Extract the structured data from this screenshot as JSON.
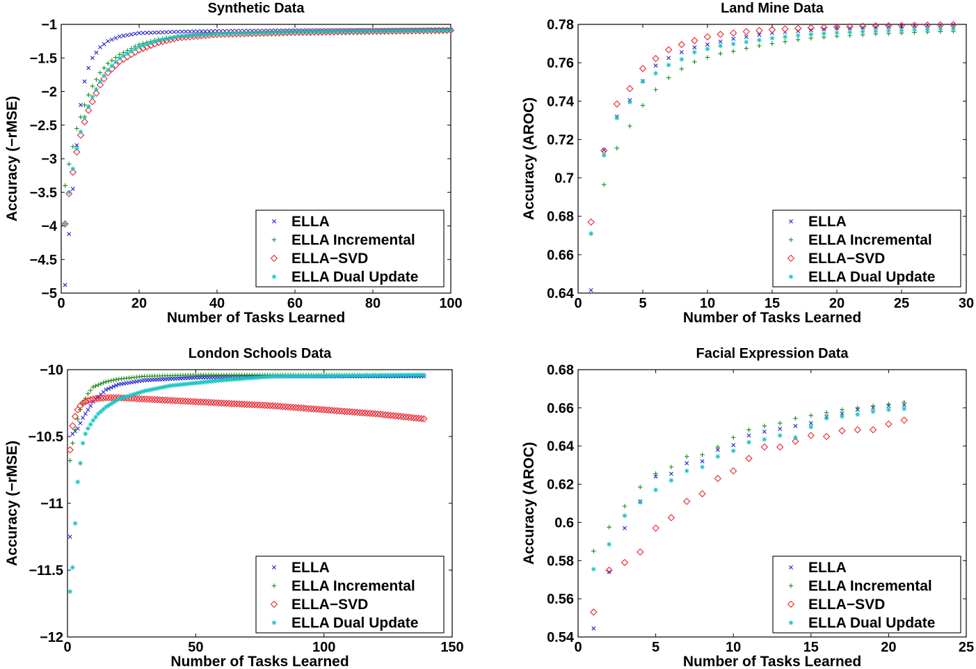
{
  "chart_data": [
    {
      "type": "scatter",
      "title": "Synthetic Data",
      "xlabel": "Number of Tasks Learned",
      "ylabel": "Accuracy (−rMSE)",
      "xlim": [
        0,
        100
      ],
      "ylim": [
        -5,
        -1
      ],
      "xticks": [
        0,
        20,
        40,
        60,
        80,
        100
      ],
      "yticks": [
        -5,
        -4.5,
        -4,
        -3.5,
        -3,
        -2.5,
        -2,
        -1.5,
        -1
      ],
      "xtick_labels": [
        "0",
        "20",
        "40",
        "60",
        "80",
        "100"
      ],
      "ytick_labels": [
        "−5",
        "−4.5",
        "−4",
        "−3.5",
        "−3",
        "−2.5",
        "−2",
        "−1.5",
        "−1"
      ],
      "legend": [
        "ELLA",
        "ELLA Incremental",
        "ELLA−SVD",
        "ELLA Dual Update"
      ],
      "legend_position": "bottom-right",
      "series": [
        {
          "name": "ELLA",
          "marker": "x",
          "color": "#1f1fd0",
          "curve": {
            "x": [
              1,
              2,
              3,
              4,
              5,
              6,
              7,
              8,
              10,
              12,
              15,
              20,
              30,
              40,
              60,
              100
            ],
            "y": [
              -4.88,
              -4.12,
              -3.45,
              -2.8,
              -2.2,
              -1.85,
              -1.65,
              -1.5,
              -1.34,
              -1.25,
              -1.18,
              -1.13,
              -1.11,
              -1.1,
              -1.09,
              -1.08
            ]
          },
          "x_start": 1,
          "x_end": 100,
          "step": 1
        },
        {
          "name": "ELLA Incremental",
          "marker": "plus",
          "color": "#1a8a1a",
          "curve": {
            "x": [
              1,
              2,
              3,
              4,
              5,
              6,
              7,
              8,
              10,
              12,
              15,
              20,
              25,
              30,
              40,
              60,
              100
            ],
            "y": [
              -3.4,
              -3.08,
              -2.82,
              -2.55,
              -2.38,
              -2.2,
              -2.05,
              -1.92,
              -1.72,
              -1.58,
              -1.45,
              -1.3,
              -1.22,
              -1.18,
              -1.14,
              -1.12,
              -1.1
            ]
          },
          "x_start": 1,
          "x_end": 100,
          "step": 1
        },
        {
          "name": "ELLA−SVD",
          "marker": "diamond",
          "color": "#e8222a",
          "curve": {
            "x": [
              1,
              2,
              3,
              4,
              5,
              6,
              7,
              8,
              10,
              12,
              15,
              20,
              25,
              30,
              40,
              60,
              100
            ],
            "y": [
              -3.97,
              -3.52,
              -3.2,
              -2.9,
              -2.65,
              -2.45,
              -2.28,
              -2.15,
              -1.9,
              -1.72,
              -1.55,
              -1.38,
              -1.27,
              -1.2,
              -1.15,
              -1.12,
              -1.09
            ]
          },
          "x_start": 1,
          "x_end": 100,
          "step": 1
        },
        {
          "name": "ELLA Dual Update",
          "marker": "star",
          "color": "#1bc4c4",
          "curve": {
            "x": [
              1,
              2,
              3,
              4,
              5,
              6,
              7,
              8,
              10,
              12,
              15,
              20,
              25,
              30,
              40,
              60,
              100
            ],
            "y": [
              -3.97,
              -3.5,
              -3.15,
              -2.85,
              -2.6,
              -2.38,
              -2.22,
              -2.08,
              -1.85,
              -1.68,
              -1.5,
              -1.33,
              -1.24,
              -1.18,
              -1.14,
              -1.11,
              -1.09
            ]
          },
          "x_start": 1,
          "x_end": 100,
          "step": 1
        }
      ]
    },
    {
      "type": "scatter",
      "title": "Land Mine Data",
      "xlabel": "Number of Tasks Learned",
      "ylabel": "Accuracy (AROC)",
      "xlim": [
        0,
        30
      ],
      "ylim": [
        0.64,
        0.78
      ],
      "xticks": [
        0,
        5,
        10,
        15,
        20,
        25,
        30
      ],
      "yticks": [
        0.64,
        0.66,
        0.68,
        0.7,
        0.72,
        0.74,
        0.76,
        0.78
      ],
      "xtick_labels": [
        "0",
        "5",
        "10",
        "15",
        "20",
        "25",
        "30"
      ],
      "ytick_labels": [
        "0.64",
        "0.66",
        "0.68",
        "0.7",
        "0.72",
        "0.74",
        "0.76",
        "0.78"
      ],
      "legend": [
        "ELLA",
        "ELLA Incremental",
        "ELLA−SVD",
        "ELLA Dual Update"
      ],
      "legend_position": "bottom-right",
      "series": [
        {
          "name": "ELLA",
          "marker": "x",
          "color": "#1f1fd0",
          "x": [
            1,
            2,
            3,
            4,
            5,
            6,
            7,
            8,
            9,
            10,
            11,
            12,
            13,
            14,
            15,
            16,
            17,
            18,
            19,
            20,
            21,
            22,
            23,
            24,
            25,
            26,
            27,
            28,
            29
          ],
          "y": [
            0.6415,
            0.7145,
            0.732,
            0.7405,
            0.7505,
            0.7585,
            0.7625,
            0.7655,
            0.768,
            0.7695,
            0.771,
            0.7725,
            0.7735,
            0.7745,
            0.7755,
            0.776,
            0.7765,
            0.777,
            0.7775,
            0.778,
            0.778,
            0.7783,
            0.7786,
            0.7788,
            0.779,
            0.7792,
            0.7794,
            0.7796,
            0.7798
          ]
        },
        {
          "name": "ELLA Incremental",
          "marker": "plus",
          "color": "#1a8a1a",
          "x": [
            1,
            2,
            3,
            4,
            5,
            6,
            7,
            8,
            9,
            10,
            11,
            12,
            13,
            14,
            15,
            16,
            17,
            18,
            19,
            20,
            21,
            22,
            23,
            24,
            25,
            26,
            27,
            28,
            29
          ],
          "y": [
            0.671,
            0.6965,
            0.7155,
            0.727,
            0.7378,
            0.746,
            0.7522,
            0.7568,
            0.7605,
            0.7628,
            0.7648,
            0.766,
            0.7675,
            0.7688,
            0.77,
            0.771,
            0.772,
            0.7728,
            0.7733,
            0.7738,
            0.7742,
            0.7746,
            0.775,
            0.7752,
            0.7755,
            0.7758,
            0.776,
            0.7762,
            0.7764
          ]
        },
        {
          "name": "ELLA−SVD",
          "marker": "diamond",
          "color": "#e8222a",
          "x": [
            1,
            2,
            3,
            4,
            5,
            6,
            7,
            8,
            9,
            10,
            11,
            12,
            13,
            14,
            15,
            16,
            17,
            18,
            19,
            20,
            21,
            22,
            23,
            24,
            25,
            26,
            27,
            28,
            29
          ],
          "y": [
            0.677,
            0.7142,
            0.7385,
            0.7465,
            0.757,
            0.7622,
            0.7668,
            0.7695,
            0.7715,
            0.7735,
            0.7748,
            0.7755,
            0.7762,
            0.7768,
            0.7772,
            0.7776,
            0.7779,
            0.7782,
            0.7784,
            0.7786,
            0.7788,
            0.779,
            0.7792,
            0.7793,
            0.7794,
            0.7795,
            0.7796,
            0.7797,
            0.7798
          ]
        },
        {
          "name": "ELLA Dual Update",
          "marker": "star",
          "color": "#1bc4c4",
          "x": [
            1,
            2,
            3,
            4,
            5,
            6,
            7,
            8,
            9,
            10,
            11,
            12,
            13,
            14,
            15,
            16,
            17,
            18,
            19,
            20,
            21,
            22,
            23,
            24,
            25,
            26,
            27,
            28,
            29
          ],
          "y": [
            0.671,
            0.7118,
            0.7312,
            0.7395,
            0.7502,
            0.7545,
            0.7588,
            0.7618,
            0.7655,
            0.7672,
            0.7688,
            0.7698,
            0.7708,
            0.7718,
            0.7728,
            0.7735,
            0.7742,
            0.7748,
            0.7752,
            0.7756,
            0.7759,
            0.7762,
            0.7765,
            0.7767,
            0.7769,
            0.7771,
            0.7773,
            0.7775,
            0.7777
          ]
        }
      ]
    },
    {
      "type": "scatter",
      "title": "London Schools Data",
      "xlabel": "Number of Tasks Learned",
      "ylabel": "Accuracy (−rMSE)",
      "xlim": [
        0,
        150
      ],
      "ylim": [
        -12,
        -10
      ],
      "xticks": [
        0,
        50,
        100,
        150
      ],
      "yticks": [
        -12,
        -11.5,
        -11,
        -10.5,
        -10
      ],
      "xtick_labels": [
        "0",
        "50",
        "100",
        "150"
      ],
      "ytick_labels": [
        "−12",
        "−11.5",
        "−11",
        "−10.5",
        "−10"
      ],
      "legend": [
        "ELLA",
        "ELLA Incremental",
        "ELLA−SVD",
        "ELLA Dual Update"
      ],
      "legend_position": "bottom-right",
      "series": [
        {
          "name": "ELLA",
          "marker": "x",
          "color": "#1f1fd0",
          "curve": {
            "x": [
              1,
              2,
              3,
              4,
              5,
              6,
              8,
              10,
              15,
              20,
              30,
              50,
              80,
              140
            ],
            "y": [
              -11.25,
              -10.48,
              -10.46,
              -10.44,
              -10.4,
              -10.36,
              -10.3,
              -10.24,
              -10.15,
              -10.11,
              -10.08,
              -10.06,
              -10.05,
              -10.05
            ]
          },
          "x_start": 1,
          "x_end": 139,
          "step": 1
        },
        {
          "name": "ELLA Incremental",
          "marker": "plus",
          "color": "#1a8a1a",
          "curve": {
            "x": [
              1,
              2,
              3,
              4,
              5,
              6,
              8,
              10,
              15,
              20,
              30,
              50,
              80,
              140
            ],
            "y": [
              -10.68,
              -10.55,
              -10.45,
              -10.37,
              -10.3,
              -10.25,
              -10.18,
              -10.13,
              -10.09,
              -10.07,
              -10.05,
              -10.04,
              -10.04,
              -10.04
            ]
          },
          "x_start": 1,
          "x_end": 139,
          "step": 1
        },
        {
          "name": "ELLA−SVD",
          "marker": "diamond",
          "color": "#e8222a",
          "curve": {
            "x": [
              1,
              2,
              3,
              4,
              5,
              6,
              8,
              10,
              15,
              20,
              30,
              40,
              60,
              80,
              100,
              120,
              140
            ],
            "y": [
              -10.6,
              -10.42,
              -10.35,
              -10.3,
              -10.27,
              -10.25,
              -10.23,
              -10.22,
              -10.21,
              -10.21,
              -10.22,
              -10.23,
              -10.25,
              -10.27,
              -10.3,
              -10.33,
              -10.37
            ]
          },
          "x_start": 1,
          "x_end": 139,
          "step": 1
        },
        {
          "name": "ELLA Dual Update",
          "marker": "star",
          "color": "#1bc4c4",
          "curve": {
            "x": [
              1,
              2,
              3,
              4,
              5,
              6,
              7,
              8,
              10,
              12,
              15,
              20,
              30,
              40,
              60,
              80,
              140
            ],
            "y": [
              -11.66,
              -11.48,
              -11.15,
              -10.84,
              -10.7,
              -10.55,
              -10.48,
              -10.44,
              -10.38,
              -10.33,
              -10.28,
              -10.22,
              -10.16,
              -10.12,
              -10.08,
              -10.05,
              -10.04
            ]
          },
          "x_start": 1,
          "x_end": 139,
          "step": 1
        }
      ]
    },
    {
      "type": "scatter",
      "title": "Facial Expression Data",
      "xlabel": "Number of Tasks Learned",
      "ylabel": "Accuracy (AROC)",
      "xlim": [
        0,
        25
      ],
      "ylim": [
        0.54,
        0.68
      ],
      "xticks": [
        0,
        5,
        10,
        15,
        20,
        25
      ],
      "yticks": [
        0.54,
        0.56,
        0.58,
        0.6,
        0.62,
        0.64,
        0.66,
        0.68
      ],
      "xtick_labels": [
        "0",
        "5",
        "10",
        "15",
        "20",
        "25"
      ],
      "ytick_labels": [
        "0.54",
        "0.56",
        "0.58",
        "0.6",
        "0.62",
        "0.64",
        "0.66",
        "0.68"
      ],
      "legend": [
        "ELLA",
        "ELLA Incremental",
        "ELLA−SVD",
        "ELLA Dual Update"
      ],
      "legend_position": "bottom-right",
      "series": [
        {
          "name": "ELLA",
          "marker": "x",
          "color": "#1f1fd0",
          "x": [
            1,
            2,
            3,
            4,
            5,
            6,
            7,
            8,
            9,
            10,
            11,
            12,
            13,
            14,
            15,
            16,
            17,
            18,
            19,
            20,
            21
          ],
          "y": [
            0.5445,
            0.574,
            0.597,
            0.611,
            0.624,
            0.6255,
            0.631,
            0.632,
            0.638,
            0.6405,
            0.6455,
            0.6475,
            0.649,
            0.6505,
            0.652,
            0.6555,
            0.657,
            0.659,
            0.66,
            0.661,
            0.6615
          ]
        },
        {
          "name": "ELLA Incremental",
          "marker": "plus",
          "color": "#1a8a1a",
          "x": [
            1,
            2,
            3,
            4,
            5,
            6,
            7,
            8,
            9,
            10,
            11,
            12,
            13,
            14,
            15,
            16,
            17,
            18,
            19,
            20,
            21
          ],
          "y": [
            0.585,
            0.5975,
            0.6085,
            0.6185,
            0.6255,
            0.629,
            0.6345,
            0.6355,
            0.6395,
            0.6445,
            0.6485,
            0.6505,
            0.652,
            0.6545,
            0.656,
            0.6575,
            0.659,
            0.66,
            0.661,
            0.662,
            0.663
          ]
        },
        {
          "name": "ELLA−SVD",
          "marker": "diamond",
          "color": "#e8222a",
          "x": [
            1,
            2,
            3,
            4,
            5,
            6,
            7,
            8,
            9,
            10,
            11,
            12,
            13,
            14,
            15,
            16,
            17,
            18,
            19,
            20,
            21
          ],
          "y": [
            0.553,
            0.575,
            0.579,
            0.5845,
            0.597,
            0.6025,
            0.611,
            0.615,
            0.623,
            0.627,
            0.6335,
            0.6395,
            0.6395,
            0.6425,
            0.6455,
            0.645,
            0.648,
            0.6485,
            0.6485,
            0.6515,
            0.6535
          ]
        },
        {
          "name": "ELLA Dual Update",
          "marker": "star",
          "color": "#1bc4c4",
          "x": [
            1,
            2,
            3,
            4,
            5,
            6,
            7,
            8,
            9,
            10,
            11,
            12,
            13,
            14,
            15,
            16,
            17,
            18,
            19,
            20,
            21
          ],
          "y": [
            0.5755,
            0.5885,
            0.6035,
            0.6105,
            0.617,
            0.622,
            0.627,
            0.629,
            0.6345,
            0.6375,
            0.642,
            0.6435,
            0.6455,
            0.6445,
            0.65,
            0.6545,
            0.6555,
            0.6565,
            0.658,
            0.659,
            0.6595
          ]
        }
      ]
    }
  ]
}
